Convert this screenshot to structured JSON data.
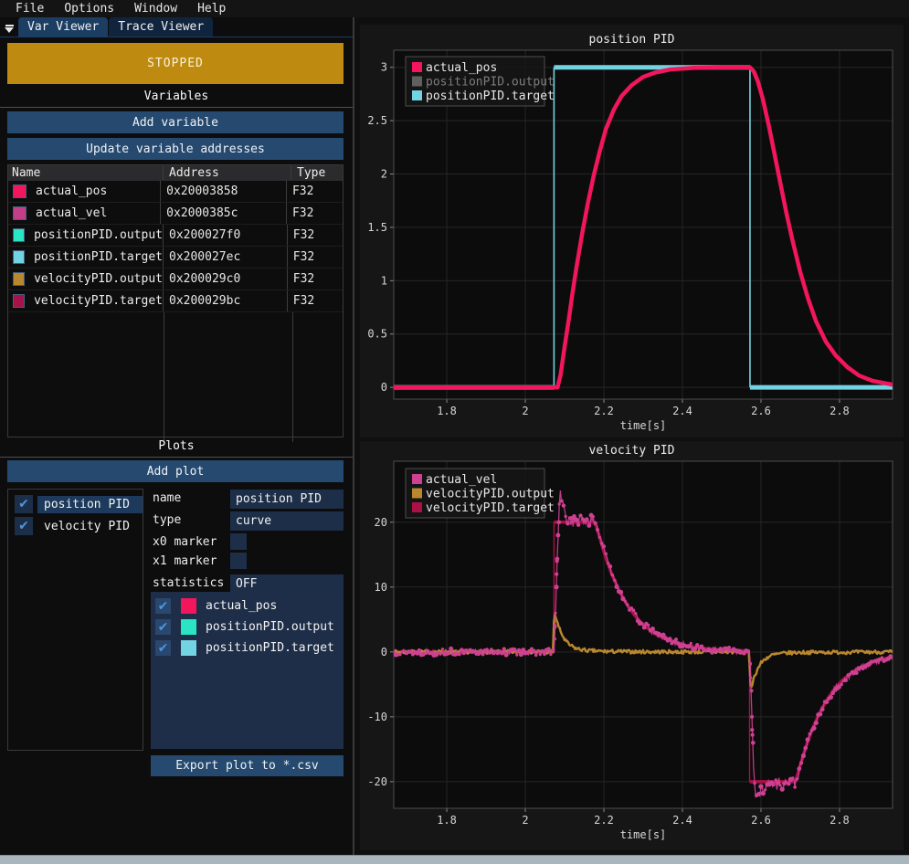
{
  "menu": {
    "items": [
      "File",
      "Options",
      "Window",
      "Help"
    ]
  },
  "tabs": {
    "items": [
      {
        "label": "Var Viewer",
        "active": true
      },
      {
        "label": "Trace Viewer",
        "active": false
      }
    ]
  },
  "icons": {
    "tab_collapse": "collapse-arrow",
    "check": "✔"
  },
  "acquisition": {
    "state_label": "STOPPED",
    "state_color": "#bf8a10"
  },
  "variables": {
    "section_title": "Variables",
    "add_button": "Add variable",
    "update_button": "Update variable addresses",
    "table": {
      "columns": [
        "Name",
        "Address",
        "Type"
      ],
      "rows": [
        {
          "name": "actual_pos",
          "color": "#f2165c",
          "address": "0x20003858",
          "type": "F32"
        },
        {
          "name": "actual_vel",
          "color": "#c23e88",
          "address": "0x2000385c",
          "type": "F32"
        },
        {
          "name": "positionPID.output",
          "color": "#2ae5c3",
          "address": "0x200027f0",
          "type": "F32"
        },
        {
          "name": "positionPID.target",
          "color": "#72d3e2",
          "address": "0x200027ec",
          "type": "F32"
        },
        {
          "name": "velocityPID.output",
          "color": "#b9882e",
          "address": "0x200029c0",
          "type": "F32"
        },
        {
          "name": "velocityPID.target",
          "color": "#a6134a",
          "address": "0x200029bc",
          "type": "F32"
        }
      ]
    }
  },
  "plots": {
    "section_title": "Plots",
    "add_button": "Add plot",
    "list": [
      {
        "label": "position PID",
        "checked": true,
        "selected": true
      },
      {
        "label": "velocity PID",
        "checked": true,
        "selected": false
      }
    ],
    "settings": {
      "name_label": "name",
      "name_value": "position PID",
      "type_label": "type",
      "type_value": "curve",
      "x0_label": "x0 marker",
      "x0_checked": false,
      "x1_label": "x1 marker",
      "x1_checked": false,
      "stats_label": "statistics",
      "stats_value": "OFF"
    },
    "series": [
      {
        "label": "actual_pos",
        "color": "#f2165c",
        "checked": true
      },
      {
        "label": "positionPID.output",
        "color": "#2ae5c3",
        "checked": true
      },
      {
        "label": "positionPID.target",
        "color": "#72d3e2",
        "checked": true
      }
    ],
    "export_button": "Export plot to *.csv"
  },
  "colors": {
    "accent_blue": "#26496f",
    "selection": "#1d3a5c",
    "checkbox_check": "#4f94e0",
    "input_bg": "#1d2e48",
    "series_panel_bg": "#1f2e48",
    "stopped_bg": "#bf8a10",
    "grid": "#262626",
    "plot_border": "#4d4d4d",
    "axis_text": "#d6d6d6"
  },
  "chart_data": [
    {
      "id": "position-pid",
      "type": "line",
      "title": "position PID",
      "xlabel": "time[s]",
      "xlim": [
        1.665,
        2.935
      ],
      "ylim": [
        -0.11,
        3.16
      ],
      "x_ticks": {
        "values": [
          1.8,
          2.0,
          2.2,
          2.4,
          2.6,
          2.8
        ],
        "labels": [
          "1.8",
          "2",
          "2.2",
          "2.4",
          "2.6",
          "2.8"
        ]
      },
      "y_ticks": {
        "values": [
          0,
          0.5,
          1,
          1.5,
          2,
          2.5,
          3
        ],
        "labels": [
          "0",
          "0.5",
          "1",
          "1.5",
          "2",
          "2.5",
          "3"
        ]
      },
      "legend_position": "top-left",
      "grid": true,
      "series": [
        {
          "name": "actual_pos",
          "color": "#f2165c",
          "legend_hidden": false,
          "render": {
            "style": "smooth",
            "width": 4.5
          },
          "points": [
            [
              1.665,
              0
            ],
            [
              2.082,
              0
            ],
            [
              2.09,
              0.12
            ],
            [
              2.1,
              0.38
            ],
            [
              2.11,
              0.62
            ],
            [
              2.12,
              0.88
            ],
            [
              2.13,
              1.12
            ],
            [
              2.145,
              1.45
            ],
            [
              2.16,
              1.74
            ],
            [
              2.175,
              2.0
            ],
            [
              2.19,
              2.22
            ],
            [
              2.205,
              2.42
            ],
            [
              2.225,
              2.6
            ],
            [
              2.245,
              2.73
            ],
            [
              2.27,
              2.83
            ],
            [
              2.3,
              2.91
            ],
            [
              2.33,
              2.95
            ],
            [
              2.37,
              2.98
            ],
            [
              2.43,
              2.995
            ],
            [
              2.5,
              3.0
            ],
            [
              2.572,
              3.0
            ],
            [
              2.582,
              2.96
            ],
            [
              2.592,
              2.87
            ],
            [
              2.605,
              2.7
            ],
            [
              2.62,
              2.45
            ],
            [
              2.635,
              2.18
            ],
            [
              2.65,
              1.9
            ],
            [
              2.665,
              1.63
            ],
            [
              2.68,
              1.38
            ],
            [
              2.7,
              1.08
            ],
            [
              2.72,
              0.83
            ],
            [
              2.74,
              0.62
            ],
            [
              2.765,
              0.43
            ],
            [
              2.79,
              0.3
            ],
            [
              2.82,
              0.19
            ],
            [
              2.85,
              0.11
            ],
            [
              2.885,
              0.06
            ],
            [
              2.935,
              0.025
            ]
          ]
        },
        {
          "name": "positionPID.output",
          "color": "#2ae5c3",
          "legend_hidden": true,
          "render": {
            "style": "none"
          },
          "points": []
        },
        {
          "name": "positionPID.target",
          "color": "#72d3e2",
          "legend_hidden": false,
          "render": {
            "style": "step",
            "width": 5,
            "thin": 1.6
          },
          "points": [
            [
              1.665,
              0
            ],
            [
              2.073,
              0
            ],
            [
              2.073,
              3
            ],
            [
              2.572,
              3
            ],
            [
              2.572,
              0
            ],
            [
              2.935,
              0
            ]
          ]
        }
      ]
    },
    {
      "id": "velocity-pid",
      "type": "line+scatter",
      "title": "velocity PID",
      "xlabel": "time[s]",
      "xlim": [
        1.665,
        2.935
      ],
      "ylim": [
        -24.1,
        29.4
      ],
      "x_ticks": {
        "values": [
          1.8,
          2.0,
          2.2,
          2.4,
          2.6,
          2.8
        ],
        "labels": [
          "1.8",
          "2",
          "2.2",
          "2.4",
          "2.6",
          "2.8"
        ]
      },
      "y_ticks": {
        "values": [
          -20,
          -10,
          0,
          10,
          20
        ],
        "labels": [
          "-20",
          "-10",
          "0",
          "10",
          "20"
        ]
      },
      "legend_position": "top-left",
      "grid": true,
      "series": [
        {
          "name": "actual_vel",
          "color": "#ce4192",
          "legend_hidden": false,
          "render": {
            "style": "scatter",
            "width": 1.3,
            "noise": 0.5,
            "seed": 13,
            "dot": 2.0
          },
          "points": [
            [
              1.665,
              0
            ],
            [
              2.074,
              0
            ],
            [
              2.078,
              8
            ],
            [
              2.082,
              16
            ],
            [
              2.086,
              22
            ],
            [
              2.09,
              24.5
            ],
            [
              2.096,
              22.5
            ],
            [
              2.103,
              20.6
            ],
            [
              2.12,
              20.2
            ],
            [
              2.15,
              20.3
            ],
            [
              2.178,
              20.1
            ],
            [
              2.19,
              17.8
            ],
            [
              2.205,
              14.8
            ],
            [
              2.22,
              12.2
            ],
            [
              2.24,
              9.5
            ],
            [
              2.26,
              7.3
            ],
            [
              2.28,
              5.6
            ],
            [
              2.3,
              4.3
            ],
            [
              2.33,
              2.9
            ],
            [
              2.36,
              2.0
            ],
            [
              2.4,
              1.1
            ],
            [
              2.44,
              0.6
            ],
            [
              2.5,
              0.25
            ],
            [
              2.572,
              0.1
            ],
            [
              2.576,
              -8
            ],
            [
              2.58,
              -16
            ],
            [
              2.584,
              -21.5
            ],
            [
              2.59,
              -22.8
            ],
            [
              2.6,
              -21.2
            ],
            [
              2.61,
              -20.6
            ],
            [
              2.64,
              -20.3
            ],
            [
              2.688,
              -20.1
            ],
            [
              2.7,
              -17.6
            ],
            [
              2.715,
              -14.6
            ],
            [
              2.73,
              -12.1
            ],
            [
              2.75,
              -9.4
            ],
            [
              2.77,
              -7.3
            ],
            [
              2.79,
              -5.6
            ],
            [
              2.81,
              -4.3
            ],
            [
              2.84,
              -3.0
            ],
            [
              2.87,
              -2.0
            ],
            [
              2.91,
              -1.2
            ],
            [
              2.935,
              -0.9
            ]
          ]
        },
        {
          "name": "velocityPID.output",
          "color": "#b9882e",
          "legend_hidden": false,
          "render": {
            "style": "noisy",
            "width": 2.4,
            "noise": 0.28,
            "seed": 7
          },
          "points": [
            [
              1.665,
              0
            ],
            [
              2.07,
              0
            ],
            [
              2.074,
              6.2
            ],
            [
              2.082,
              4.4
            ],
            [
              2.09,
              3.1
            ],
            [
              2.1,
              1.9
            ],
            [
              2.112,
              1.1
            ],
            [
              2.13,
              0.5
            ],
            [
              2.16,
              0.2
            ],
            [
              2.2,
              0.08
            ],
            [
              2.3,
              0.02
            ],
            [
              2.569,
              0
            ],
            [
              2.574,
              -5.6
            ],
            [
              2.582,
              -4.0
            ],
            [
              2.59,
              -2.8
            ],
            [
              2.6,
              -1.7
            ],
            [
              2.612,
              -1.0
            ],
            [
              2.63,
              -0.45
            ],
            [
              2.66,
              -0.18
            ],
            [
              2.7,
              -0.07
            ],
            [
              2.935,
              0
            ]
          ]
        },
        {
          "name": "velocityPID.target",
          "color": "#ab1146",
          "legend_hidden": false,
          "render": {
            "style": "step",
            "width": 3.5,
            "thin": 1.4
          },
          "points": [
            [
              1.665,
              0
            ],
            [
              2.073,
              0
            ],
            [
              2.073,
              20
            ],
            [
              2.178,
              20
            ],
            [
              2.19,
              17.5
            ],
            [
              2.205,
              14.5
            ],
            [
              2.22,
              12
            ],
            [
              2.24,
              9.3
            ],
            [
              2.26,
              7.2
            ],
            [
              2.28,
              5.5
            ],
            [
              2.3,
              4.2
            ],
            [
              2.33,
              2.8
            ],
            [
              2.36,
              1.9
            ],
            [
              2.4,
              1.1
            ],
            [
              2.44,
              0.65
            ],
            [
              2.5,
              0.3
            ],
            [
              2.571,
              0.15
            ],
            [
              2.571,
              -20
            ],
            [
              2.688,
              -20
            ],
            [
              2.7,
              -17.5
            ],
            [
              2.715,
              -14.5
            ],
            [
              2.73,
              -12
            ],
            [
              2.75,
              -9.3
            ],
            [
              2.77,
              -7.2
            ],
            [
              2.79,
              -5.5
            ],
            [
              2.81,
              -4.2
            ],
            [
              2.84,
              -2.8
            ],
            [
              2.87,
              -1.9
            ],
            [
              2.91,
              -1.1
            ],
            [
              2.935,
              -0.8
            ]
          ]
        }
      ]
    }
  ]
}
